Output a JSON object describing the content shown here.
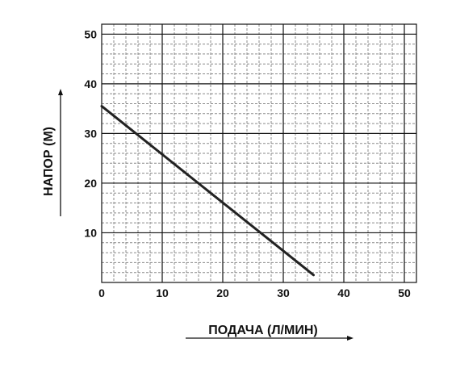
{
  "chart_data": {
    "type": "line",
    "xlabel": "ПОДАЧА (Л/МИН)",
    "ylabel": "НАПОР (М)",
    "xlim": [
      0,
      52
    ],
    "ylim": [
      0,
      52
    ],
    "x_ticks": [
      "0",
      "10",
      "20",
      "30",
      "40",
      "50"
    ],
    "y_ticks": [
      "10",
      "20",
      "30",
      "40",
      "50"
    ],
    "grid": true,
    "series": [
      {
        "x": [
          0,
          35
        ],
        "y": [
          35.5,
          1.5
        ]
      }
    ],
    "colors": {
      "line": "#222222",
      "major_grid": "#111111",
      "minor_grid": "#8a8a8a"
    }
  }
}
